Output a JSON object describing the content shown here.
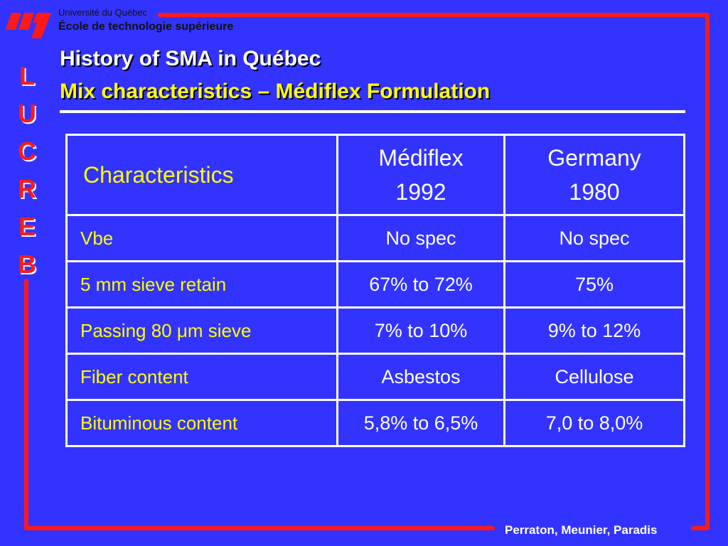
{
  "header": {
    "university": "Université du Québec",
    "school": "École de technologie supérieure"
  },
  "side_letters": [
    "L",
    "U",
    "C",
    "R",
    "E",
    "B"
  ],
  "title": {
    "line1": "History of SMA in Québec",
    "line2": "Mix characteristics – Médiflex Formulation"
  },
  "table": {
    "header": {
      "label": "Characteristics",
      "col1_line1": "Médiflex",
      "col1_line2": "1992",
      "col2_line1": "Germany",
      "col2_line2": "1980"
    },
    "rows": [
      {
        "label": "Vbe",
        "mediflex": "No spec",
        "germany": "No spec"
      },
      {
        "label": "5 mm sieve retain",
        "mediflex": "67% to 72%",
        "germany": "75%"
      },
      {
        "label": "Passing 80 μm  sieve",
        "mediflex": "7% to 10%",
        "germany": "9% to 12%"
      },
      {
        "label": "Fiber content",
        "mediflex": "Asbestos",
        "germany": "Cellulose"
      },
      {
        "label": "Bituminous content",
        "mediflex": "5,8% to 6,5%",
        "germany": "7,0 to 8,0%"
      }
    ]
  },
  "footer": {
    "authors": "Perraton, Meunier, Paradis"
  },
  "colors": {
    "background": "#3333ff",
    "frame": "#ff1a1a",
    "highlight": "#ffff00",
    "text": "#ffffff"
  }
}
